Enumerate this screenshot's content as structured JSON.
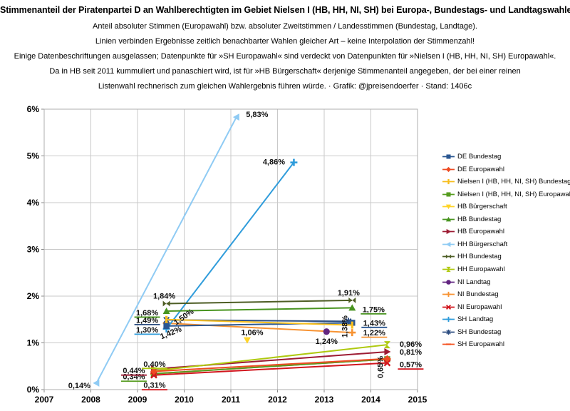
{
  "header": {
    "title": "Stimmenanteil der Piratenpartei D an Wahlberechtigten im Gebiet Nielsen I (HB, HH, NI, SH) bei Europa-, Bundestags- und Landtagswahlen",
    "subtitle_lines": [
      "Anteil absoluter Stimmen (Europawahl) bzw. absoluter Zweitstimmen / Landesstimmen (Bundestag, Landtage).",
      "Linien verbinden Ergebnisse zeitlich benachbarter Wahlen gleicher Art – keine Interpolation der Stimmenzahl!",
      "Einige Datenbeschriftungen ausgelassen; Datenpunkte für »SH Europawahl« sind verdeckt von Datenpunkten für »Nielsen I (HB, HH, NI, SH) Europawahl«.",
      "Da in HB seit 2011 kummuliert und panaschiert wird, ist für »HB Bürgerschaft« derjenige Stimmenanteil angegeben, der bei einer reinen",
      "Listenwahl rechnerisch zum gleichen Wahlergebnis führen würde. · Grafik: @jpreisendoerfer · Stand: 1406c"
    ]
  },
  "chart_data": {
    "type": "line",
    "title": "Stimmenanteil der Piratenpartei D an Wahlberechtigten im Gebiet Nielsen I (HB, HH, NI, SH)",
    "xlabel": "",
    "ylabel": "",
    "grid": true,
    "legend_position": "right",
    "grid_color": "#C9C9C9",
    "x_axis": {
      "min": 2007,
      "max": 2015,
      "ticks": [
        2007,
        2008,
        2009,
        2010,
        2011,
        2012,
        2013,
        2014,
        2015
      ],
      "tick_labels": [
        "2007",
        "2008",
        "2009",
        "2010",
        "2011",
        "2012",
        "2013",
        "2014",
        "2015"
      ]
    },
    "y_axis": {
      "min": 0,
      "max": 6,
      "ticks": [
        0,
        1,
        2,
        3,
        4,
        5,
        6
      ],
      "tick_labels": [
        "0%",
        "1%",
        "2%",
        "3%",
        "4%",
        "5%",
        "6%"
      ]
    },
    "series": [
      {
        "name": "DE Bundestag",
        "color": "#2A5791",
        "marker": "square",
        "z": 1,
        "points": [
          {
            "x": 2009.62,
            "y": 1.36
          },
          {
            "x": 2013.6,
            "y": 1.43,
            "label": "1,43%",
            "dx": 31,
            "dy": 0,
            "underline": true
          }
        ]
      },
      {
        "name": "DE Europawahl",
        "color": "#EE4B23",
        "marker": "diamond",
        "z": 2,
        "points": [
          {
            "x": 2009.35,
            "y": 0.39
          },
          {
            "x": 2014.35,
            "y": 0.66
          }
        ]
      },
      {
        "name": "Nielsen I (HB, HH, NI, SH) Bundestag",
        "color": "#F7BE1E",
        "marker": "vdash",
        "z": 1,
        "points": [
          {
            "x": 2009.62,
            "y": 1.5,
            "label": "1,50%",
            "dx": 24,
            "dy": -4,
            "rot": -35
          },
          {
            "x": 2013.6,
            "y": 1.38,
            "label": "1,38%",
            "dx": -11,
            "dy": 2,
            "rot": -90
          }
        ]
      },
      {
        "name": "Nielsen I (HB, HH, NI, SH) Europawahl",
        "color": "#559C1F",
        "marker": "square",
        "z": 1,
        "points": [
          {
            "x": 2009.35,
            "y": 0.34,
            "label": "0,34%",
            "dx": -28,
            "dy": 4,
            "underline": true
          },
          {
            "x": 2014.35,
            "y": 0.65,
            "label": "0,65%",
            "dx": -10,
            "dy": 11,
            "rot": -90
          }
        ]
      },
      {
        "name": "HB Bürgerschaft",
        "color": "#FFD428",
        "marker": "tri-down",
        "z": 1,
        "points": [
          {
            "x": 2011.35,
            "y": 1.06,
            "label": "1,06%",
            "dx": 7,
            "dy": -11
          }
        ]
      },
      {
        "name": "HB Bundestag",
        "color": "#48941F",
        "marker": "tri-up",
        "z": 1,
        "points": [
          {
            "x": 2009.62,
            "y": 1.68,
            "label": "1,68%",
            "dx": -27,
            "dy": 2,
            "underline": true
          },
          {
            "x": 2013.6,
            "y": 1.75,
            "label": "1,75%",
            "dx": 30,
            "dy": 2,
            "underline": true
          }
        ]
      },
      {
        "name": "HB Europawahl",
        "color": "#9D1B33",
        "marker": "tri-right",
        "z": 1,
        "points": [
          {
            "x": 2009.35,
            "y": 0.44,
            "label": "0,44%",
            "dx": -28,
            "dy": 2,
            "underline": true
          },
          {
            "x": 2014.35,
            "y": 0.81,
            "label": "0,81%",
            "dx": 33,
            "dy": 0
          }
        ]
      },
      {
        "name": "HH Bürgerschaft",
        "color": "#8FCBF4",
        "marker": "tri-left",
        "z": 1,
        "points": [
          {
            "x": 2008.12,
            "y": 0.14,
            "label": "0,14%",
            "dx": -24,
            "dy": 3
          },
          {
            "x": 2011.12,
            "y": 5.83,
            "label": "5,83%",
            "dx": 29,
            "dy": -4
          }
        ]
      },
      {
        "name": "HH Bundestag",
        "color": "#4D5D24",
        "marker": "bowtie",
        "z": 1,
        "points": [
          {
            "x": 2009.62,
            "y": 1.84,
            "label": "1,84%",
            "dx": -3,
            "dy": -11
          },
          {
            "x": 2013.6,
            "y": 1.91,
            "label": "1,91%",
            "dx": -5,
            "dy": -11
          }
        ]
      },
      {
        "name": "HH Europawahl",
        "color": "#AFC90F",
        "marker": "hourglass",
        "z": 1,
        "points": [
          {
            "x": 2009.35,
            "y": 0.4,
            "label": "0,40%",
            "dx": 1,
            "dy": -10,
            "underline": true
          },
          {
            "x": 2014.35,
            "y": 0.96,
            "label": "0,96%",
            "dx": 33,
            "dy": -1
          }
        ]
      },
      {
        "name": "NI Landtag",
        "color": "#622580",
        "marker": "circle",
        "z": 1,
        "points": [
          {
            "x": 2013.05,
            "y": 1.24,
            "label": "1,24%",
            "dx": 0,
            "dy": 13
          }
        ]
      },
      {
        "name": "NI Bundestag",
        "color": "#F79333",
        "marker": "plus",
        "z": 0,
        "points": [
          {
            "x": 2009.62,
            "y": 1.42,
            "label": "1,42%",
            "dx": 6,
            "dy": 13,
            "rot": -22
          },
          {
            "x": 2013.6,
            "y": 1.22,
            "label": "1,22%",
            "dx": 31,
            "dy": 0,
            "underline": true
          }
        ]
      },
      {
        "name": "NI Europawahl",
        "color": "#D2161E",
        "marker": "x",
        "z": 1,
        "points": [
          {
            "x": 2009.35,
            "y": 0.31,
            "label": "0,31%",
            "dx": 1,
            "dy": 14,
            "underline": true
          },
          {
            "x": 2014.35,
            "y": 0.57,
            "label": "0,57%",
            "dx": 33,
            "dy": 2,
            "underline": true
          }
        ]
      },
      {
        "name": "SH Landtag",
        "color": "#2F9CDB",
        "marker": "plus",
        "z": 0,
        "points": [
          {
            "x": 2009.62,
            "y": 1.3,
            "label": "1,30%",
            "dx": -27,
            "dy": 1,
            "underline": true
          },
          {
            "x": 2012.35,
            "y": 4.86,
            "label": "4,86%",
            "dx": -28,
            "dy": -1
          }
        ]
      },
      {
        "name": "SH Bundestag",
        "color": "#2C4D80",
        "marker": "asterisk",
        "z": 0,
        "points": [
          {
            "x": 2009.62,
            "y": 1.49,
            "label": "1,49%",
            "dx": -27,
            "dy": 0,
            "underline": true
          },
          {
            "x": 2013.52,
            "y": 1.46
          }
        ]
      },
      {
        "name": "SH Europawahl",
        "color": "#F4511E",
        "marker": "dash",
        "z": 0,
        "points": [
          {
            "x": 2009.35,
            "y": 0.34
          },
          {
            "x": 2014.35,
            "y": 0.65
          }
        ]
      }
    ]
  }
}
